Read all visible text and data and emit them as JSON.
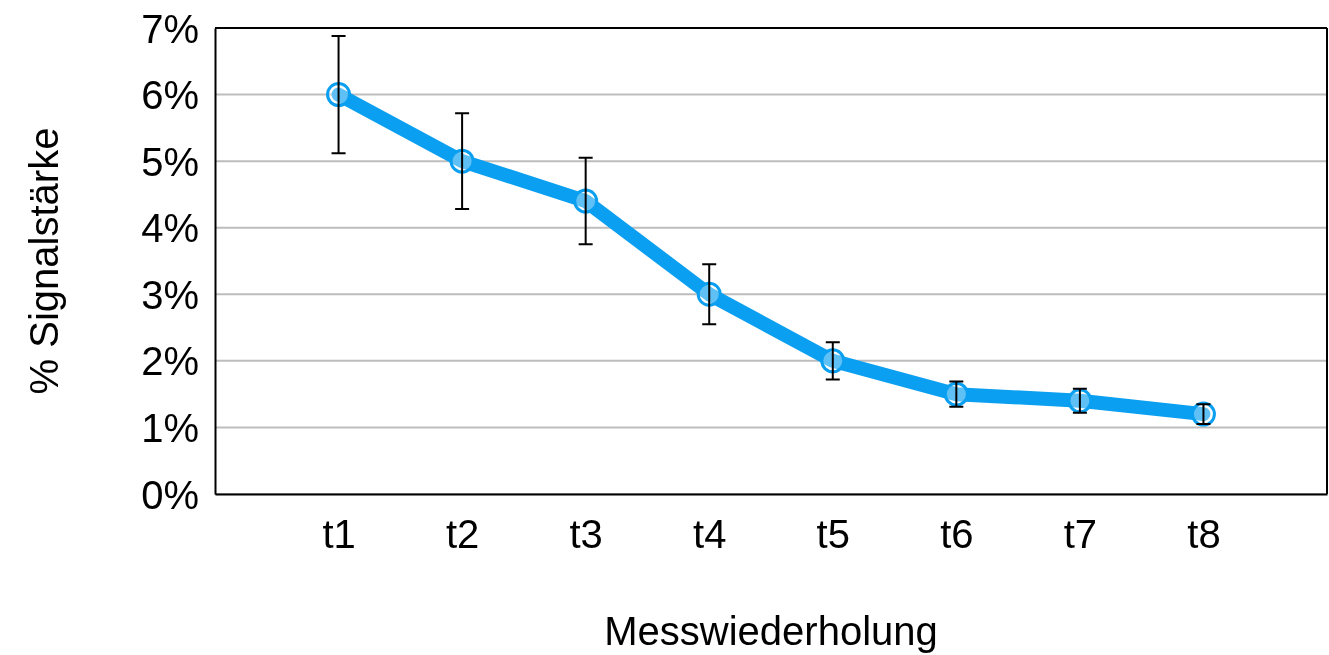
{
  "chart_data": {
    "type": "line",
    "xlabel": "Messwiederholung",
    "ylabel": "% Signalstärke",
    "categories": [
      "t1",
      "t2",
      "t3",
      "t4",
      "t5",
      "t6",
      "t7",
      "t8"
    ],
    "series": [
      {
        "color": "#0a9ff0",
        "values": [
          6.0,
          5.0,
          4.4,
          3.0,
          2.0,
          1.5,
          1.4,
          1.2
        ],
        "errors": [
          0.88,
          0.72,
          0.65,
          0.45,
          0.28,
          0.19,
          0.18,
          0.15
        ]
      }
    ],
    "ylim": [
      0,
      7
    ],
    "yticks": [
      {
        "value": 0,
        "label": "0%"
      },
      {
        "value": 1,
        "label": "1%"
      },
      {
        "value": 2,
        "label": "2%"
      },
      {
        "value": 3,
        "label": "3%"
      },
      {
        "value": 4,
        "label": "4%"
      },
      {
        "value": 5,
        "label": "5%"
      },
      {
        "value": 6,
        "label": "6%"
      },
      {
        "value": 7,
        "label": "7%"
      }
    ],
    "grid": "y",
    "marker": "circle",
    "line_style": "solid"
  }
}
